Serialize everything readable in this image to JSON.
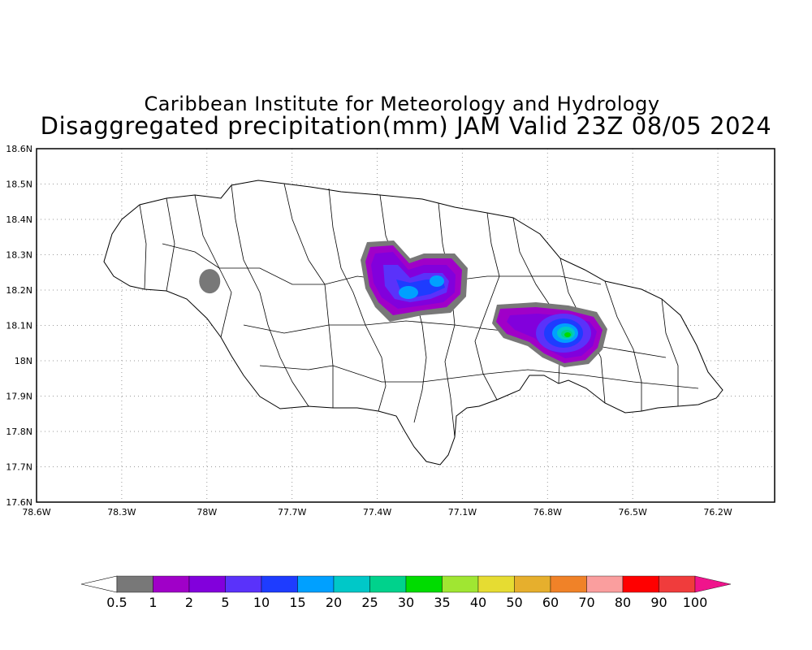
{
  "header": {
    "title": "Caribbean Institute for Meteorology and Hydrology",
    "subtitle": "Disaggregated precipitation(mm) JAM Valid 23Z 08/05 2024"
  },
  "map": {
    "lat_ticks": [
      "18.6N",
      "18.5N",
      "18.4N",
      "18.3N",
      "18.2N",
      "18.1N",
      "18N",
      "17.9N",
      "17.8N",
      "17.7N",
      "17.6N"
    ],
    "lon_ticks": [
      "78.6W",
      "78.3W",
      "78W",
      "77.7W",
      "77.4W",
      "77.1W",
      "76.8W",
      "76.5W",
      "76.2W"
    ],
    "lat_range": [
      17.6,
      18.6
    ],
    "lon_range": [
      -78.6,
      -76.0
    ],
    "grid": "dotted",
    "precip_areas": [
      {
        "area": "west",
        "max_mm": 1,
        "center_lon": -77.99,
        "center_lat": 18.225
      },
      {
        "area": "central-north",
        "max_mm": 15,
        "center_lon": -77.25,
        "center_lat": 18.23
      },
      {
        "area": "east",
        "max_mm": 35,
        "center_lon": -76.77,
        "center_lat": 18.08
      }
    ]
  },
  "legend": {
    "labels": [
      "0.5",
      "1",
      "2",
      "5",
      "10",
      "15",
      "20",
      "25",
      "30",
      "35",
      "40",
      "50",
      "60",
      "70",
      "80",
      "90",
      "100"
    ],
    "colors": [
      "#787878",
      "#a000c8",
      "#8200dc",
      "#5a32fa",
      "#1e3cff",
      "#00a0ff",
      "#00c8c8",
      "#00d28c",
      "#00dc00",
      "#a0e632",
      "#e6dc32",
      "#e6af2d",
      "#f08228",
      "#fa9e9e",
      "#ff0000",
      "#f03c3c",
      "#f0148c"
    ],
    "low_color": "#ffffff"
  }
}
